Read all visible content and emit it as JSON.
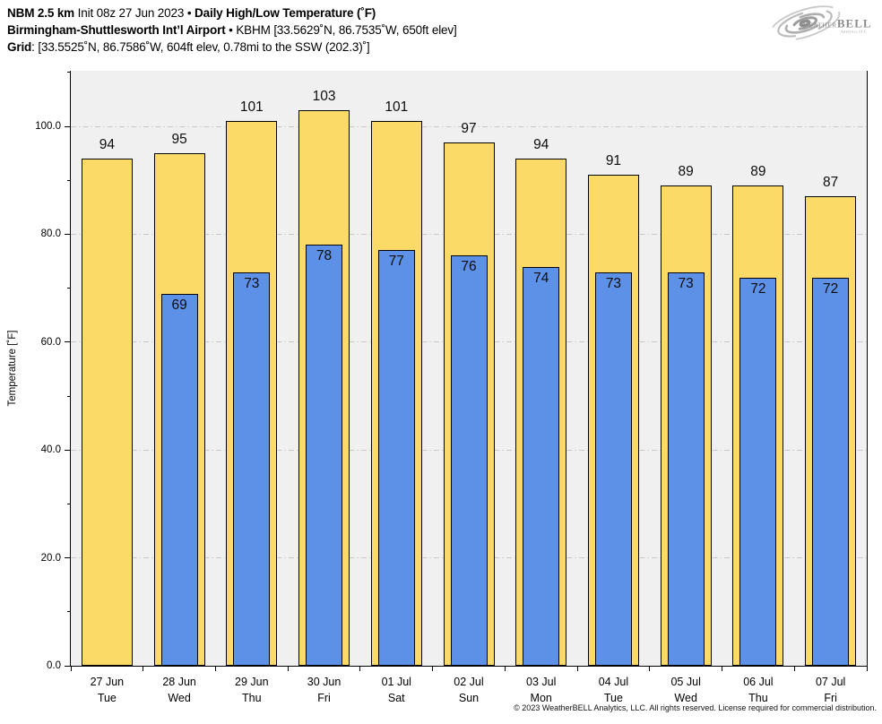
{
  "header": {
    "line1": {
      "bold1": "NBM 2.5 km",
      "mid": " Init 08z 27 Jun 2023 • ",
      "bold2": "Daily High/Low Temperature (˚F)"
    },
    "line2": {
      "bold": "Birmingham-Shuttlesworth Int’l Airport",
      "rest": " • KBHM [33.5629˚N, 86.7535˚W, 650ft elev]"
    },
    "line3": {
      "bold": "Grid",
      "rest": ": [33.5525˚N, 86.7586˚W, 604ft elev, 0.78mi to the SSW (202.3)˚]"
    }
  },
  "logo": {
    "weather": "Weather",
    "bell": "BELL",
    "analytics": "Analytics LLC"
  },
  "chart_data": {
    "type": "bar",
    "title": "NBM 2.5 km Daily High/Low Temperature (˚F) — Birmingham-Shuttlesworth Int’l Airport (KBHM)",
    "categories": [
      "27 Jun",
      "28 Jun",
      "29 Jun",
      "30 Jun",
      "01 Jul",
      "02 Jul",
      "03 Jul",
      "04 Jul",
      "05 Jul",
      "06 Jul",
      "07 Jul"
    ],
    "weekdays": [
      "Tue",
      "Wed",
      "Thu",
      "Fri",
      "Sat",
      "Sun",
      "Mon",
      "Tue",
      "Wed",
      "Thu",
      "Fri"
    ],
    "series": [
      {
        "name": "High",
        "color": "#FBDA68",
        "values": [
          94,
          95,
          101,
          103,
          101,
          97,
          94,
          91,
          89,
          89,
          87
        ]
      },
      {
        "name": "Low",
        "color": "#5D90E7",
        "values": [
          null,
          69,
          73,
          78,
          77,
          76,
          74,
          73,
          73,
          72,
          72
        ]
      }
    ],
    "ylabel": "Temperature [˚F]",
    "ylim": [
      0,
      110.3
    ],
    "yticks_major": [
      0,
      20,
      40,
      60,
      80,
      100
    ],
    "ytick_labels": [
      "0.0",
      "20.0",
      "40.0",
      "60.0",
      "80.0",
      "100.0"
    ],
    "yticks_minor": [
      10,
      30,
      50,
      70,
      90,
      110
    ],
    "grid": {
      "visible": true,
      "style": "dash-dot",
      "color": "#c8c8c8",
      "orientation": "horizontal"
    },
    "plot_bg": "#f0f0f0",
    "bar_edge": "#000000",
    "legend": "none"
  },
  "footer": {
    "copyright": "© 2023 WeatherBELL Analytics, LLC. All rights reserved. License required for commercial distribution."
  }
}
